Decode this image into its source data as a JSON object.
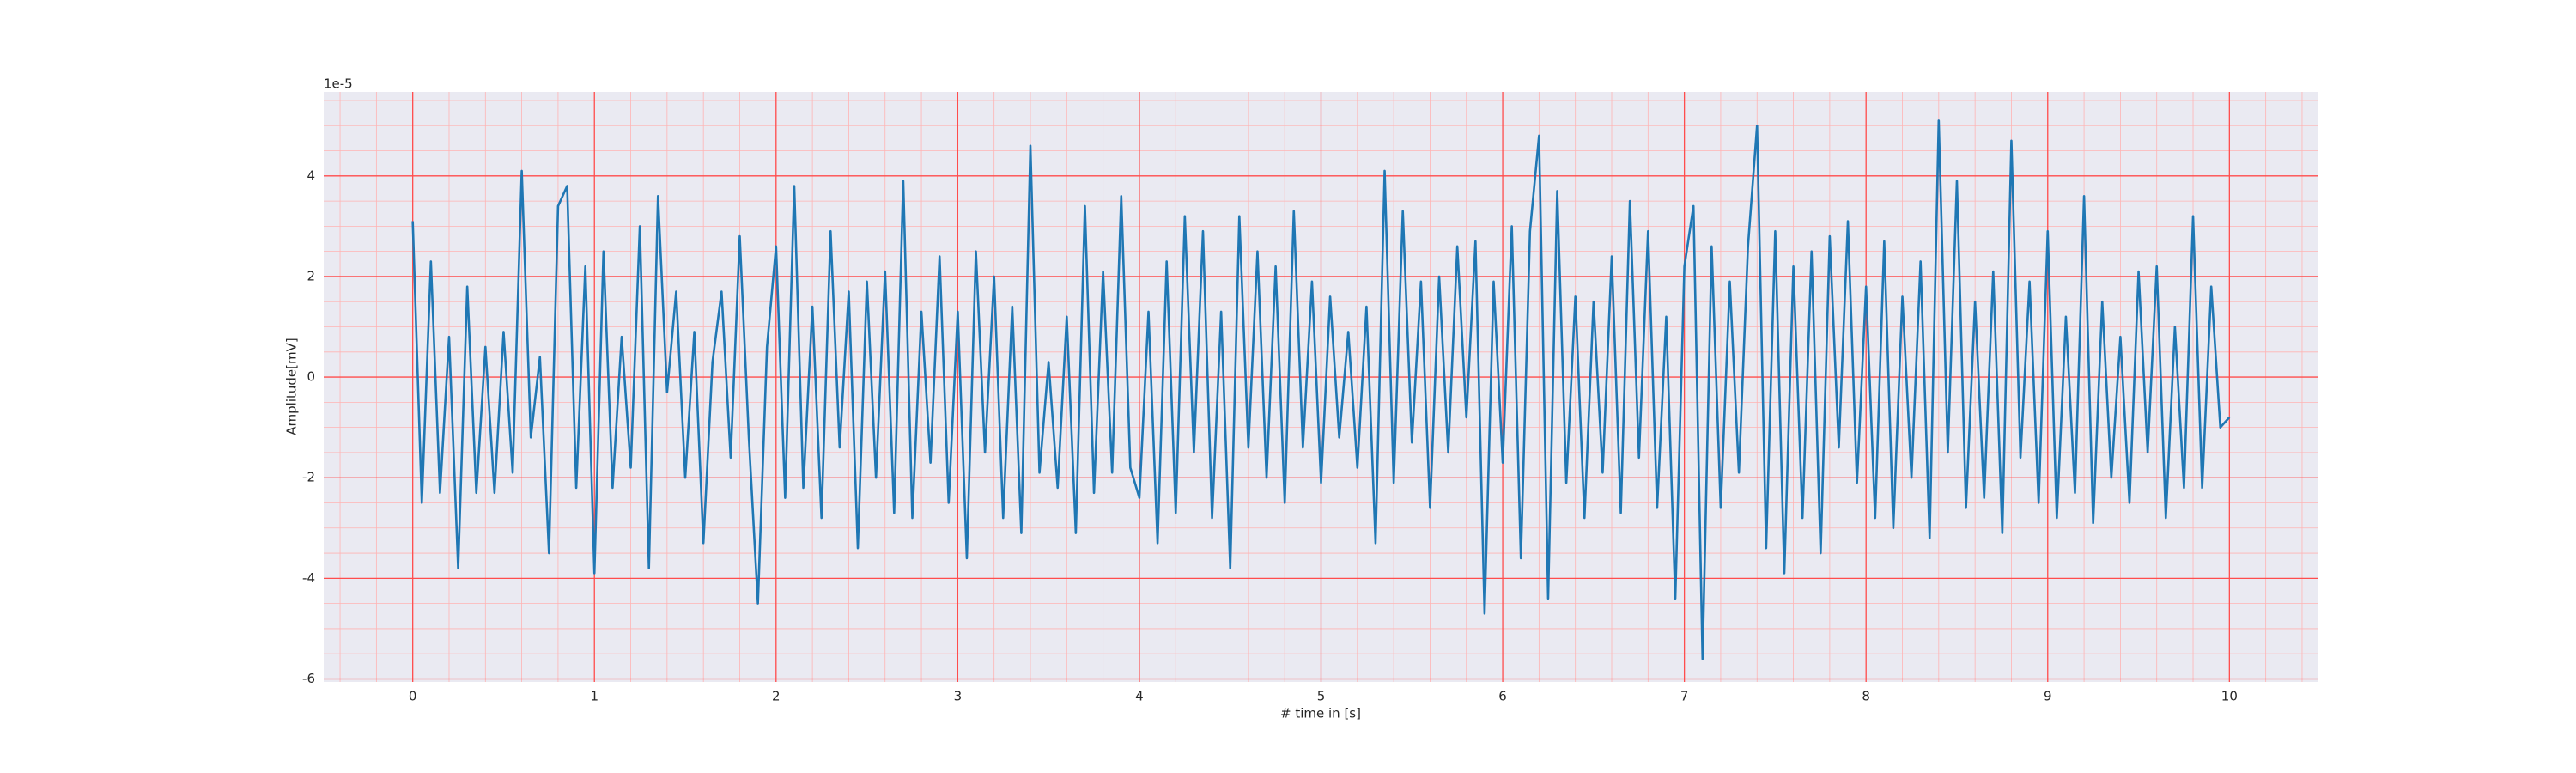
{
  "chart_data": {
    "type": "line",
    "xlabel": "# time in [s]",
    "ylabel": "Amplitude[mV]",
    "offset_text": "1e-5",
    "color": "#1f77b4",
    "grid": true,
    "xlim": [
      -0.49,
      10.49
    ],
    "ylim": [
      -6.06,
      5.67
    ],
    "xticks": [
      0,
      1,
      2,
      3,
      4,
      5,
      6,
      7,
      8,
      9,
      10
    ],
    "yticks": [
      -6,
      -4,
      -2,
      0,
      2,
      4
    ],
    "xticks_minor": [
      -0.4,
      -0.2,
      0,
      0.2,
      0.4,
      0.6,
      0.8,
      1,
      1.2,
      1.4,
      1.6,
      1.8,
      2,
      2.2,
      2.4,
      2.6,
      2.8,
      3,
      3.2,
      3.4,
      3.6,
      3.8,
      4,
      4.2,
      4.4,
      4.6,
      4.8,
      5,
      5.2,
      5.4,
      5.6,
      5.8,
      6,
      6.2,
      6.4,
      6.6,
      6.8,
      7,
      7.2,
      7.4,
      7.6,
      7.8,
      8,
      8.2,
      8.4,
      8.6,
      8.8,
      9,
      9.2,
      9.4,
      9.6,
      9.8,
      10,
      10.2,
      10.4
    ],
    "yticks_minor": [
      -6,
      -5.5,
      -5,
      -4.5,
      -4,
      -3.5,
      -3,
      -2.5,
      -2,
      -1.5,
      -1,
      -0.5,
      0,
      0.5,
      1,
      1.5,
      2,
      2.5,
      3,
      3.5,
      4,
      4.5,
      5,
      5.5
    ],
    "x": [
      0,
      0.05,
      0.1,
      0.15,
      0.2,
      0.25,
      0.3,
      0.35,
      0.4,
      0.45,
      0.5,
      0.55,
      0.6,
      0.65,
      0.7,
      0.75,
      0.8,
      0.85,
      0.9,
      0.95,
      1,
      1.05,
      1.1,
      1.15,
      1.2,
      1.25,
      1.3,
      1.35,
      1.4,
      1.45,
      1.5,
      1.55,
      1.6,
      1.65,
      1.7,
      1.75,
      1.8,
      1.85,
      1.9,
      1.95,
      2,
      2.05,
      2.1,
      2.15,
      2.2,
      2.25,
      2.3,
      2.35,
      2.4,
      2.45,
      2.5,
      2.55,
      2.6,
      2.65,
      2.7,
      2.75,
      2.8,
      2.85,
      2.9,
      2.95,
      3,
      3.05,
      3.1,
      3.15,
      3.2,
      3.25,
      3.3,
      3.35,
      3.4,
      3.45,
      3.5,
      3.55,
      3.6,
      3.65,
      3.7,
      3.75,
      3.8,
      3.85,
      3.9,
      3.95,
      4,
      4.05,
      4.1,
      4.15,
      4.2,
      4.25,
      4.3,
      4.35,
      4.4,
      4.45,
      4.5,
      4.55,
      4.6,
      4.65,
      4.7,
      4.75,
      4.8,
      4.85,
      4.9,
      4.95,
      5,
      5.05,
      5.1,
      5.15,
      5.2,
      5.25,
      5.3,
      5.35,
      5.4,
      5.45,
      5.5,
      5.55,
      5.6,
      5.65,
      5.7,
      5.75,
      5.8,
      5.85,
      5.9,
      5.95,
      6,
      6.05,
      6.1,
      6.15,
      6.2,
      6.25,
      6.3,
      6.35,
      6.4,
      6.45,
      6.5,
      6.55,
      6.6,
      6.65,
      6.7,
      6.75,
      6.8,
      6.85,
      6.9,
      6.95,
      7,
      7.05,
      7.1,
      7.15,
      7.2,
      7.25,
      7.3,
      7.35,
      7.4,
      7.45,
      7.5,
      7.55,
      7.6,
      7.65,
      7.7,
      7.75,
      7.8,
      7.85,
      7.9,
      7.95,
      8,
      8.05,
      8.1,
      8.15,
      8.2,
      8.25,
      8.3,
      8.35,
      8.4,
      8.45,
      8.5,
      8.55,
      8.6,
      8.65,
      8.7,
      8.75,
      8.8,
      8.85,
      8.9,
      8.95,
      9,
      9.05,
      9.1,
      9.15,
      9.2,
      9.25,
      9.3,
      9.35,
      9.4,
      9.45,
      9.5,
      9.55,
      9.6,
      9.65,
      9.7,
      9.75,
      9.8,
      9.85,
      9.9,
      9.95,
      10
    ],
    "values": [
      3.1,
      -2.5,
      2.3,
      -2.3,
      0.8,
      -3.8,
      1.8,
      -2.3,
      0.6,
      -2.3,
      0.9,
      -1.9,
      4.1,
      -1.2,
      0.4,
      -3.5,
      3.4,
      3.8,
      -2.2,
      2.2,
      -3.9,
      2.5,
      -2.2,
      0.8,
      -1.8,
      3.0,
      -3.8,
      3.6,
      -0.3,
      1.7,
      -2.0,
      0.9,
      -3.3,
      0.3,
      1.7,
      -1.6,
      2.8,
      -1.2,
      -4.5,
      0.6,
      2.6,
      -2.4,
      3.8,
      -2.2,
      1.4,
      -2.8,
      2.9,
      -1.4,
      1.7,
      -3.4,
      1.9,
      -2.0,
      2.1,
      -2.7,
      3.9,
      -2.8,
      1.3,
      -1.7,
      2.4,
      -2.5,
      1.3,
      -3.6,
      2.5,
      -1.5,
      2.0,
      -2.8,
      1.4,
      -3.1,
      4.6,
      -1.9,
      0.3,
      -2.2,
      1.2,
      -3.1,
      3.4,
      -2.3,
      2.1,
      -1.9,
      3.6,
      -1.8,
      -2.4,
      1.3,
      -3.3,
      2.3,
      -2.7,
      3.2,
      -1.5,
      2.9,
      -2.8,
      1.3,
      -3.8,
      3.2,
      -1.4,
      2.5,
      -2.0,
      2.2,
      -2.5,
      3.3,
      -1.4,
      1.9,
      -2.1,
      1.6,
      -1.2,
      0.9,
      -1.8,
      1.4,
      -3.3,
      4.1,
      -2.1,
      3.3,
      -1.3,
      1.9,
      -2.6,
      2.0,
      -1.5,
      2.6,
      -0.8,
      2.7,
      -4.7,
      1.9,
      -1.7,
      3.0,
      -3.6,
      2.9,
      4.8,
      -4.4,
      3.7,
      -2.1,
      1.6,
      -2.8,
      1.5,
      -1.9,
      2.4,
      -2.7,
      3.5,
      -1.6,
      2.9,
      -2.6,
      1.2,
      -4.4,
      2.2,
      3.4,
      -5.6,
      2.6,
      -2.6,
      1.9,
      -1.9,
      2.6,
      5.0,
      -3.4,
      2.9,
      -3.9,
      2.2,
      -2.8,
      2.5,
      -3.5,
      2.8,
      -1.4,
      3.1,
      -2.1,
      1.8,
      -2.8,
      2.7,
      -3.0,
      1.6,
      -2.0,
      2.3,
      -3.2,
      5.1,
      -1.5,
      3.9,
      -2.6,
      1.5,
      -2.4,
      2.1,
      -3.1,
      4.7,
      -1.6,
      1.9,
      -2.5,
      2.9,
      -2.8,
      1.2,
      -2.3,
      3.6,
      -2.9,
      1.5,
      -2.0,
      0.8,
      -2.5,
      2.1,
      -1.5,
      2.2,
      -2.8,
      1.0,
      -2.2,
      3.2,
      -2.2,
      1.8,
      -1.0,
      -0.8
    ]
  }
}
